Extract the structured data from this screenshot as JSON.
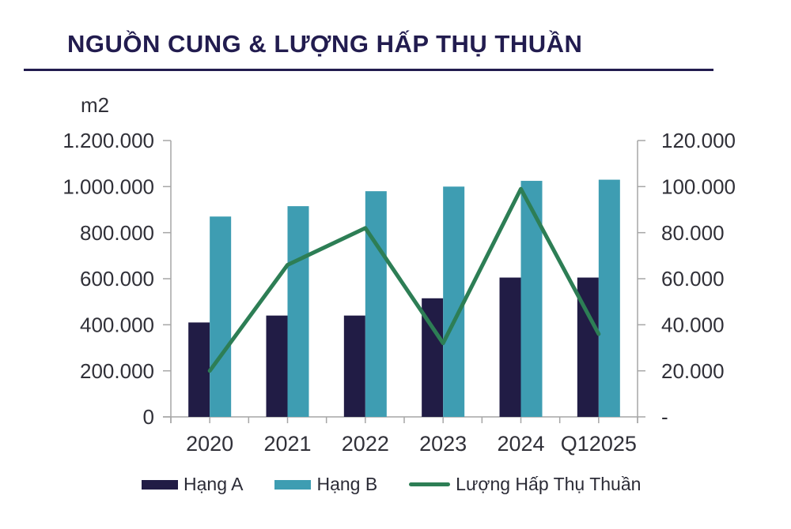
{
  "title": "NGUỒN CUNG & LƯỢNG HẤP THỤ THUẦN",
  "colors": {
    "title": "#221c4f",
    "hang_a_bar": "#211c45",
    "hang_b_bar": "#3e9db2",
    "absorption_line": "#2d7e55",
    "axis": "#a6a6a6",
    "tick_text": "#303038"
  },
  "chart_data": {
    "type": "combo-bar-line",
    "title": "NGUỒN CUNG & LƯỢNG HẤP THỤ THUẦN",
    "categories": [
      "2020",
      "2021",
      "2022",
      "2023",
      "2024",
      "Q12025"
    ],
    "series": [
      {
        "name": "Hạng A",
        "type": "bar",
        "axis": "left",
        "color": "#211c45",
        "values": [
          410000,
          440000,
          440000,
          515000,
          605000,
          605000
        ]
      },
      {
        "name": "Hạng B",
        "type": "bar",
        "axis": "left",
        "color": "#3e9db2",
        "values": [
          870000,
          915000,
          980000,
          1000000,
          1025000,
          1030000
        ]
      },
      {
        "name": "Lượng Hấp Thụ Thuần",
        "type": "line",
        "axis": "right",
        "color": "#2d7e55",
        "values": [
          20000,
          66000,
          82000,
          32000,
          99000,
          36000
        ]
      }
    ],
    "left_axis": {
      "unit": "m2",
      "min": 0,
      "max": 1200000,
      "step": 200000,
      "tick_labels": [
        "0",
        "200.000",
        "400.000",
        "600.000",
        "800.000",
        "1.000.000",
        "1.200.000"
      ]
    },
    "right_axis": {
      "min": 0,
      "max": 120000,
      "step": 20000,
      "tick_labels": [
        "-",
        "20.000",
        "40.000",
        "60.000",
        "80.000",
        "100.000",
        "120.000"
      ]
    },
    "grid": false,
    "legend_position": "bottom"
  }
}
